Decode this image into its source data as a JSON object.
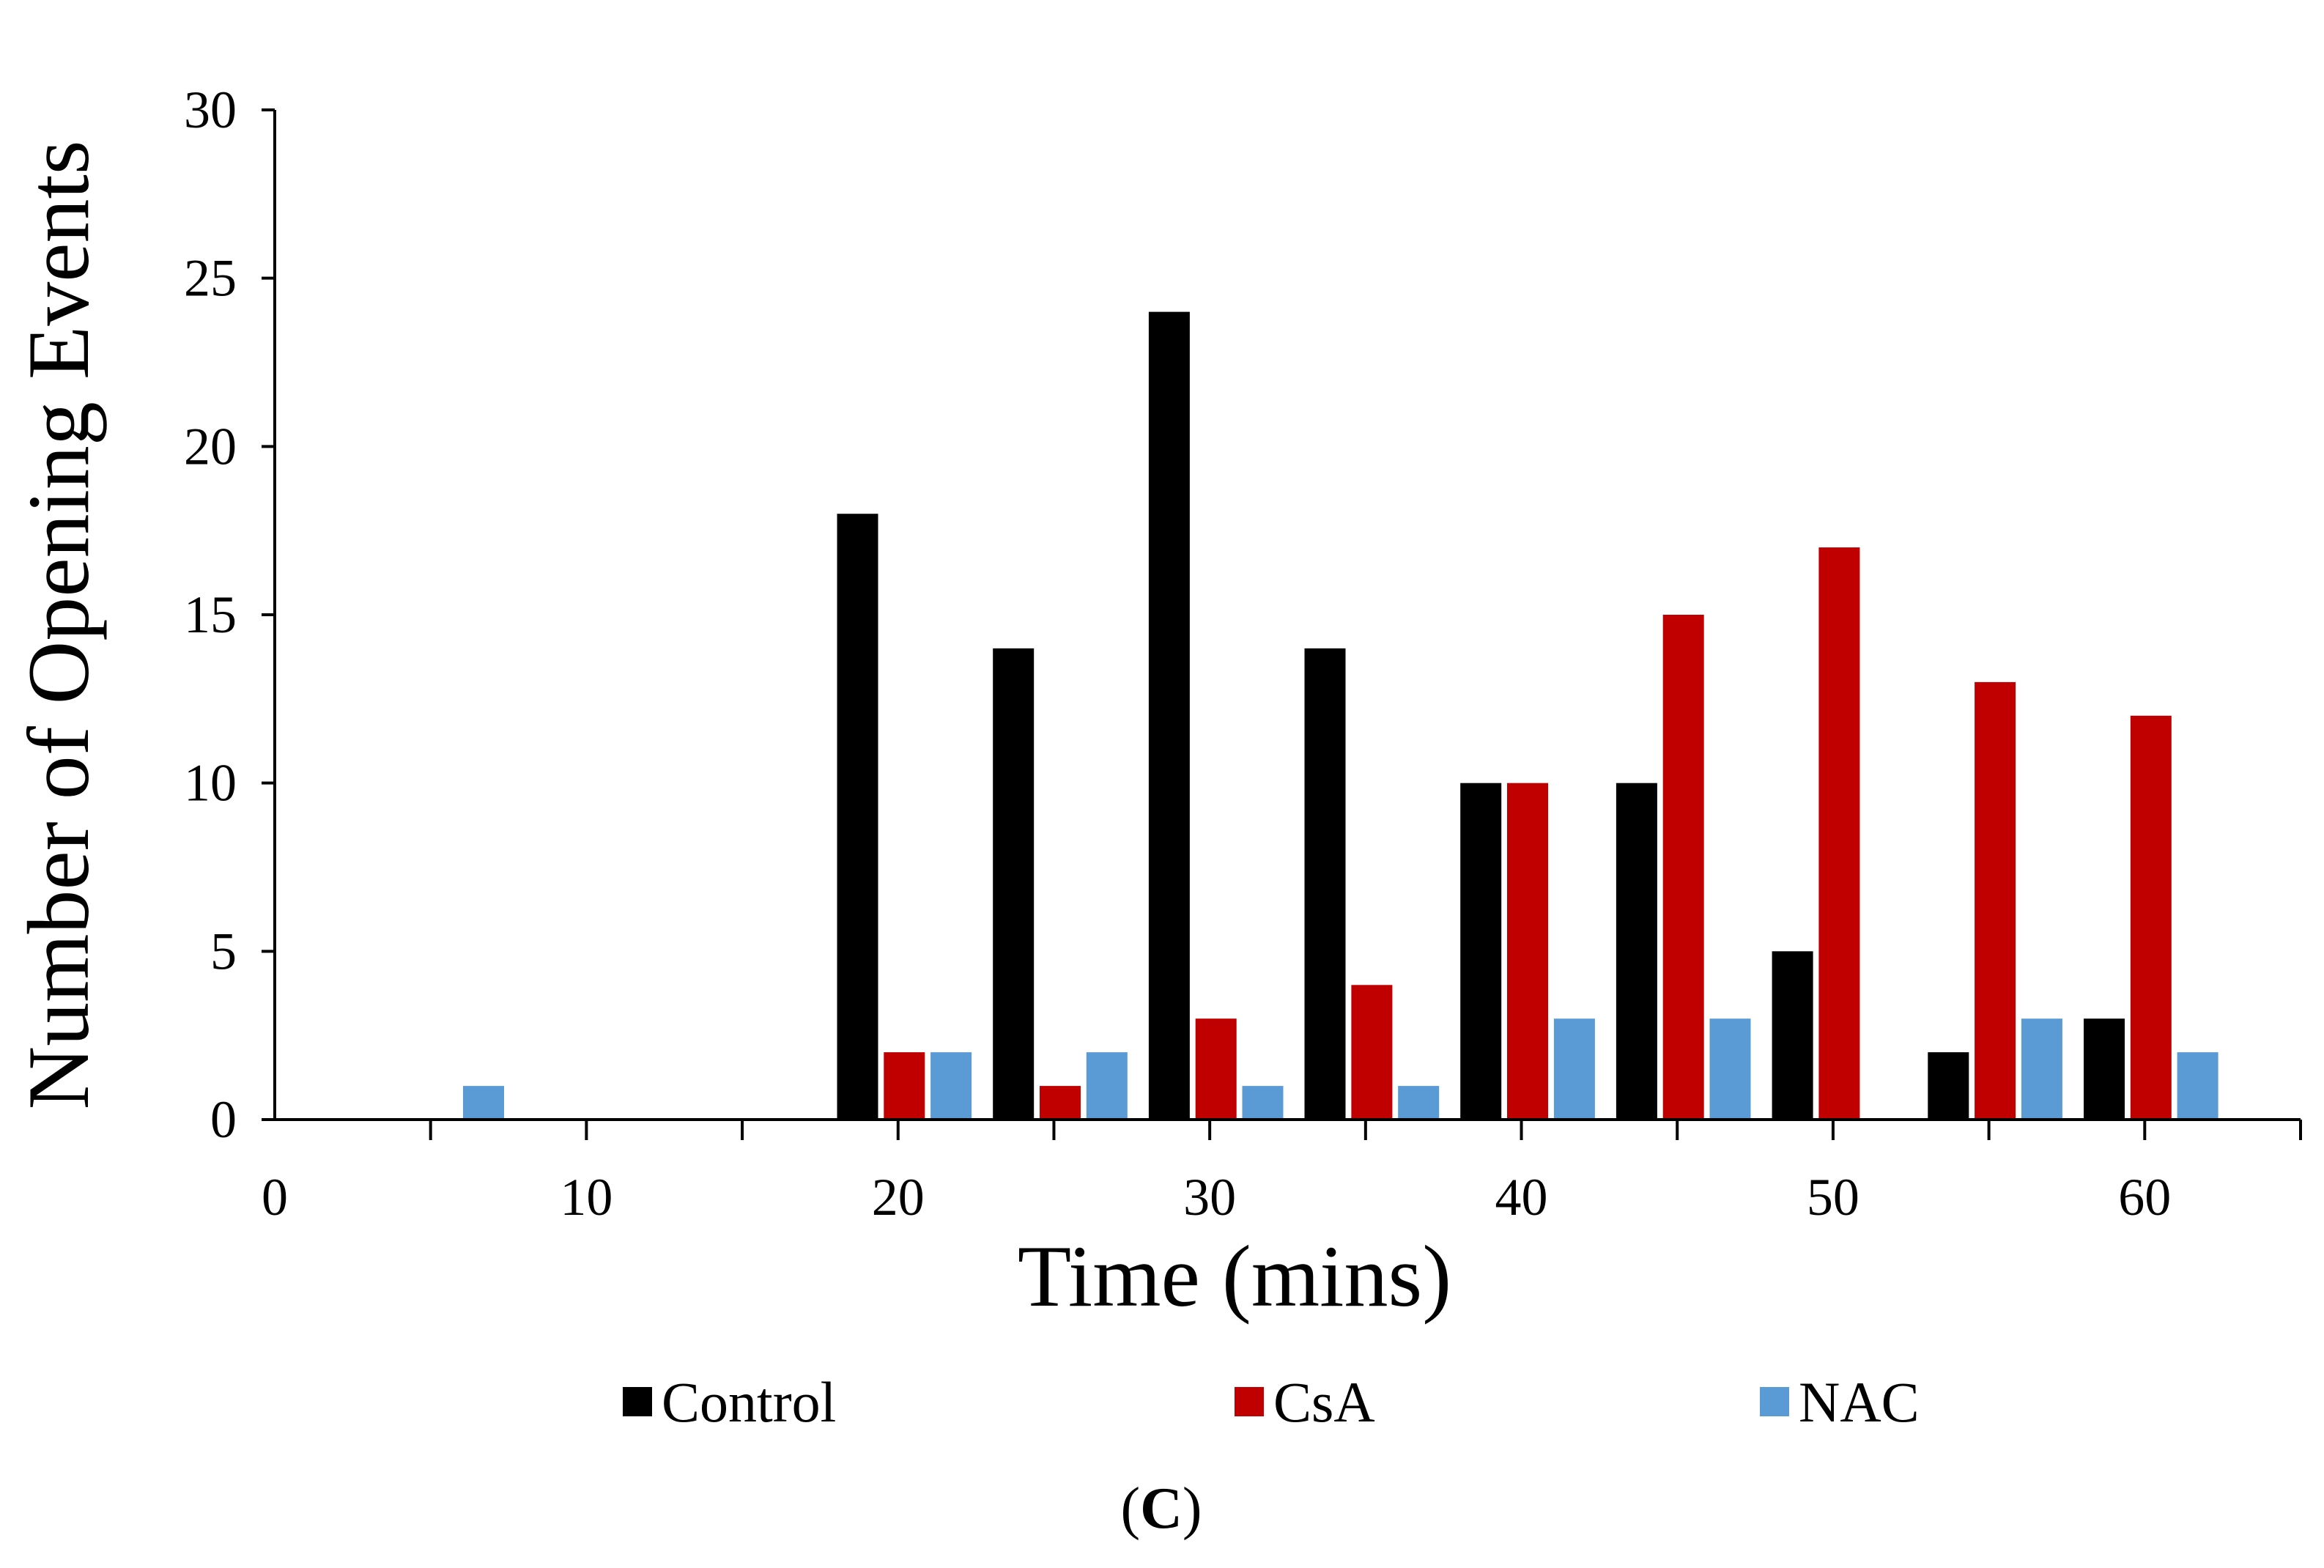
{
  "chart_data": {
    "type": "bar",
    "title": "",
    "xlabel": "Time (mins)",
    "ylabel": "Number of Opening Events",
    "xlim": [
      0,
      65
    ],
    "ylim": [
      0,
      30
    ],
    "x_ticks": [
      0,
      10,
      20,
      30,
      40,
      50,
      60
    ],
    "y_ticks": [
      0,
      5,
      10,
      15,
      20,
      25,
      30
    ],
    "legend_position": "bottom",
    "panel_label": "C",
    "series": [
      {
        "name": "Control",
        "color": "#000000",
        "points": [
          {
            "x": 18.7,
            "y": 18
          },
          {
            "x": 23.7,
            "y": 14
          },
          {
            "x": 28.7,
            "y": 24
          },
          {
            "x": 33.7,
            "y": 14
          },
          {
            "x": 38.7,
            "y": 10
          },
          {
            "x": 43.7,
            "y": 10
          },
          {
            "x": 48.7,
            "y": 5
          },
          {
            "x": 53.7,
            "y": 2
          },
          {
            "x": 58.7,
            "y": 3
          }
        ]
      },
      {
        "name": "CsA",
        "color": "#c00000",
        "points": [
          {
            "x": 20.2,
            "y": 2
          },
          {
            "x": 25.2,
            "y": 1
          },
          {
            "x": 30.2,
            "y": 3
          },
          {
            "x": 35.2,
            "y": 4
          },
          {
            "x": 40.2,
            "y": 10
          },
          {
            "x": 45.2,
            "y": 15
          },
          {
            "x": 50.2,
            "y": 17
          },
          {
            "x": 55.2,
            "y": 13
          },
          {
            "x": 60.2,
            "y": 12
          }
        ]
      },
      {
        "name": "NAC",
        "color": "#5b9bd5",
        "points": [
          {
            "x": 6.7,
            "y": 1
          },
          {
            "x": 21.7,
            "y": 2
          },
          {
            "x": 26.7,
            "y": 2
          },
          {
            "x": 31.7,
            "y": 1
          },
          {
            "x": 36.7,
            "y": 1
          },
          {
            "x": 41.7,
            "y": 3
          },
          {
            "x": 46.7,
            "y": 3
          },
          {
            "x": 56.7,
            "y": 3
          },
          {
            "x": 61.7,
            "y": 2
          }
        ]
      }
    ]
  }
}
